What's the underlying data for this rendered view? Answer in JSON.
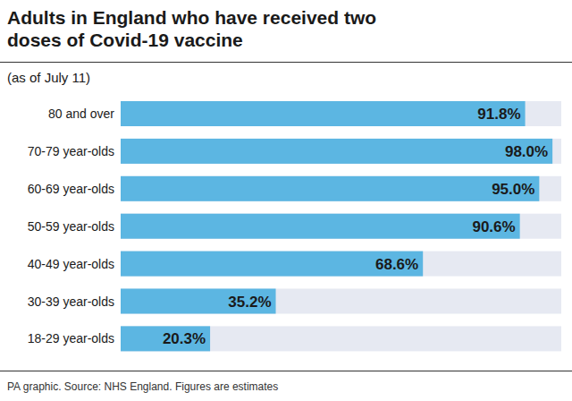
{
  "chart_data": {
    "type": "bar",
    "orientation": "horizontal",
    "title": "Adults in England who have received two doses of Covid-19 vaccine",
    "subtitle": "(as of July 11)",
    "note": "PA graphic. Source: NHS England. Figures are estimates",
    "categories": [
      "80 and over",
      "70-79 year-olds",
      "60-69 year-olds",
      "50-59 year-olds",
      "40-49 year-olds",
      "30-39 year-olds",
      "18-29 year-olds"
    ],
    "values": [
      91.8,
      98.0,
      95.0,
      90.6,
      68.6,
      35.2,
      20.3
    ],
    "value_labels": [
      "91.8%",
      "98.0%",
      "95.0%",
      "90.6%",
      "68.6%",
      "35.2%",
      "20.3%"
    ],
    "color": "#5cb6e2",
    "xlim": [
      0,
      100
    ],
    "data_labels": true,
    "tick_labels": "y",
    "grid": false
  }
}
